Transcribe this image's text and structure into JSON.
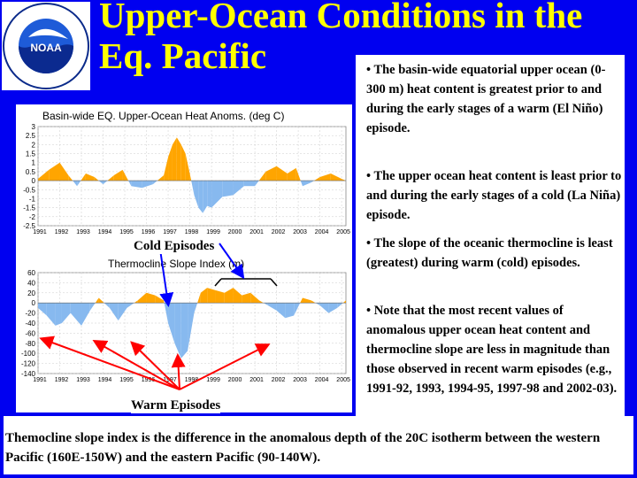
{
  "title_line1": "Upper-Ocean Conditions in the",
  "title_line2": "Eq. Pacific",
  "logo": {
    "ring_text": "NATIONAL OCEANIC AND ATMOSPHERIC ADMINISTRATION · U.S. DEPARTMENT OF COMMERCE",
    "name": "NOAA"
  },
  "bullets": [
    "• The basin-wide equatorial upper ocean (0-300 m) heat content is greatest prior to and during the early stages of a warm (El Niño) episode.",
    "• The upper ocean heat content is least prior to and during the early stages of a cold (La Niña) episode.",
    "• The slope of the oceanic thermocline is least (greatest) during warm (cold) episodes.",
    "• Note that the most recent values of anomalous upper ocean heat content and thermocline slope are less in magnitude than those observed in recent warm episodes (e.g., 1991-92, 1993, 1994-95, 1997-98 and 2002-03)."
  ],
  "footer": "Themocline slope index is the difference in the anomalous depth of the 20C isotherm between the western Pacific (160E-150W) and the eastern Pacific (90-140W).",
  "labels": {
    "cold": "Cold Episodes",
    "warm": "Warm Episodes"
  },
  "colors": {
    "background": "#0000f0",
    "title": "#ffff00",
    "warm": "#ffa500",
    "cold": "#87b9ef",
    "arrow_warm": "#ff0000",
    "arrow_cold": "#0000ff"
  },
  "chart_data": [
    {
      "type": "area",
      "title": "Basin-wide EQ. Upper-Ocean Heat Anoms. (deg C)",
      "x_ticks": [
        "1991",
        "1992",
        "1993",
        "1994",
        "1995",
        "1996",
        "1997",
        "1998",
        "1999",
        "2000",
        "2001",
        "2002",
        "2003",
        "2004",
        "2005"
      ],
      "y_ticks": [
        "3",
        "2.5",
        "2",
        "1.5",
        "1",
        "0.5",
        "0",
        "-0.5",
        "-1",
        "-1.5",
        "-2",
        "-2.5"
      ],
      "ylim": [
        -2.5,
        3
      ],
      "xlim": [
        1991,
        2005.2
      ],
      "grid": true,
      "x": [
        1991.0,
        1991.5,
        1992.0,
        1992.4,
        1992.8,
        1993.2,
        1993.6,
        1994.0,
        1994.5,
        1994.9,
        1995.3,
        1995.8,
        1996.3,
        1996.8,
        1997.0,
        1997.2,
        1997.4,
        1997.6,
        1997.8,
        1998.0,
        1998.2,
        1998.4,
        1998.6,
        1998.8,
        1999.0,
        1999.5,
        2000.0,
        2000.5,
        2001.0,
        2001.5,
        2002.0,
        2002.5,
        2002.9,
        2003.2,
        2003.6,
        2004.0,
        2004.5,
        2005.0,
        2005.2
      ],
      "values": [
        0.1,
        0.6,
        1.0,
        0.3,
        -0.3,
        0.4,
        0.2,
        -0.2,
        0.3,
        0.6,
        -0.3,
        -0.4,
        -0.2,
        0.3,
        1.3,
        2.0,
        2.4,
        2.0,
        1.5,
        0.4,
        -0.8,
        -1.5,
        -1.8,
        -1.4,
        -1.5,
        -0.9,
        -0.8,
        -0.3,
        -0.3,
        0.5,
        0.8,
        0.4,
        0.7,
        -0.3,
        -0.1,
        0.2,
        0.4,
        0.1,
        0.0
      ]
    },
    {
      "type": "area",
      "title": "Thermocline Slope Index (m)",
      "x_ticks": [
        "1991",
        "1992",
        "1993",
        "1994",
        "1995",
        "1996",
        "1997",
        "1998",
        "1999",
        "2000",
        "2001",
        "2002",
        "2003",
        "2004",
        "2005"
      ],
      "y_ticks": [
        "60",
        "40",
        "20",
        "0",
        "-20",
        "-40",
        "-60",
        "-80",
        "-100",
        "-120",
        "-140"
      ],
      "ylim": [
        -140,
        60
      ],
      "xlim": [
        1991,
        2005.2
      ],
      "grid": true,
      "x": [
        1991.0,
        1991.4,
        1991.8,
        1992.1,
        1992.5,
        1993.0,
        1993.4,
        1993.8,
        1994.3,
        1994.7,
        1995.1,
        1995.6,
        1996.0,
        1996.4,
        1996.8,
        1997.0,
        1997.3,
        1997.6,
        1997.9,
        1998.2,
        1998.5,
        1998.8,
        1999.2,
        1999.6,
        2000.0,
        2000.4,
        2000.8,
        2001.2,
        2001.6,
        2002.0,
        2002.4,
        2002.8,
        2003.2,
        2003.6,
        2004.0,
        2004.4,
        2004.8,
        2005.2
      ],
      "values": [
        -10,
        -25,
        -45,
        -40,
        -20,
        -45,
        -15,
        10,
        -10,
        -35,
        -10,
        5,
        20,
        15,
        5,
        -40,
        -80,
        -110,
        -95,
        -20,
        20,
        30,
        25,
        20,
        30,
        15,
        20,
        5,
        -5,
        -15,
        -30,
        -25,
        10,
        5,
        -5,
        -20,
        -10,
        5
      ]
    }
  ]
}
